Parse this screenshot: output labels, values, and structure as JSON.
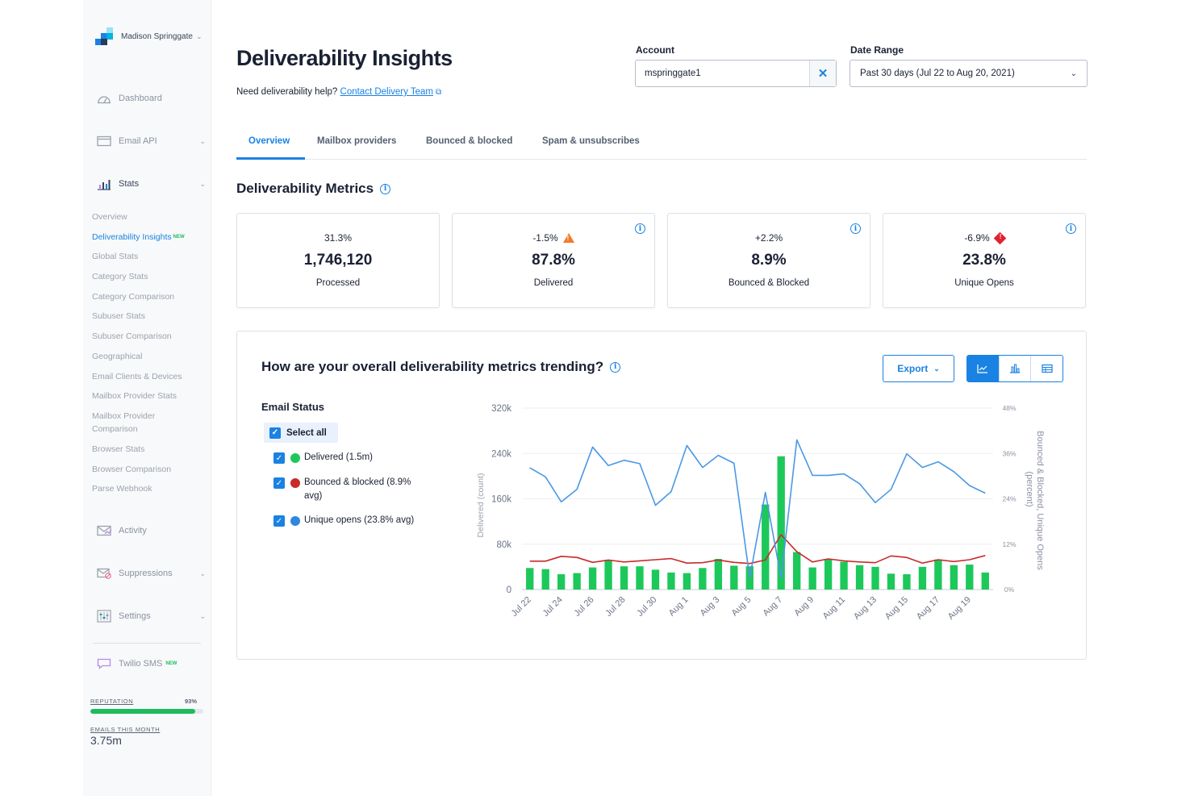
{
  "sidebar": {
    "brand": "Madison Springgate",
    "main_items": [
      {
        "label": "Dashboard",
        "icon": "gauge-icon"
      },
      {
        "label": "Email API",
        "icon": "mail-api-icon"
      },
      {
        "label": "Stats",
        "icon": "bar-stats-icon"
      }
    ],
    "stats_subitems": [
      "Overview",
      "Deliverability Insights",
      "Global Stats",
      "Category Stats",
      "Category Comparison",
      "Subuser Stats",
      "Subuser Comparison",
      "Geographical",
      "Email Clients & Devices",
      "Mailbox Provider Stats",
      "Mailbox Provider Comparison",
      "Browser Stats",
      "Browser Comparison",
      "Parse Webhook"
    ],
    "new_badge": "NEW",
    "lower_items": [
      {
        "label": "Activity",
        "icon": "activity-icon"
      },
      {
        "label": "Suppressions",
        "icon": "suppressions-icon"
      },
      {
        "label": "Settings",
        "icon": "settings-icon"
      }
    ],
    "twilio": {
      "label": "Twilio SMS",
      "badge": "NEW"
    },
    "reputation": {
      "label": "REPUTATION",
      "value_text": "93%",
      "value": 93
    },
    "emails_month": {
      "label": "EMAILS THIS MONTH",
      "value": "3.75m"
    }
  },
  "header": {
    "title": "Deliverability Insights",
    "help_text": "Need deliverability help?",
    "help_link": "Contact Delivery Team",
    "account_label": "Account",
    "account_value": "mspringgate1",
    "date_label": "Date Range",
    "date_value": "Past 30 days (Jul 22 to Aug 20, 2021)"
  },
  "tabs": [
    "Overview",
    "Mailbox providers",
    "Bounced & blocked",
    "Spam & unsubscribes"
  ],
  "metrics_title": "Deliverability Metrics",
  "metrics": [
    {
      "delta": "31.3%",
      "value": "1,746,120",
      "label": "Processed",
      "status": "none"
    },
    {
      "delta": "-1.5%",
      "value": "87.8%",
      "label": "Delivered",
      "status": "warning"
    },
    {
      "delta": "+2.2%",
      "value": "8.9%",
      "label": "Bounced & Blocked",
      "status": "none"
    },
    {
      "delta": "-6.9%",
      "value": "23.8%",
      "label": "Unique Opens",
      "status": "danger"
    }
  ],
  "trend": {
    "title": "How are your overall deliverability metrics trending?",
    "export_label": "Export",
    "email_status_title": "Email Status",
    "select_all": "Select all",
    "legend": [
      {
        "label": "Delivered (1.5m)",
        "color": "#1dc85a"
      },
      {
        "label": "Bounced & blocked (8.9% avg)",
        "color": "#c92a2a"
      },
      {
        "label": "Unique opens (23.8% avg)",
        "color": "#2f87e0"
      }
    ]
  },
  "colors": {
    "accent": "#1a82e2",
    "delivered": "#1dc85a",
    "bounced": "#c92a2a",
    "opens": "#4a98e6"
  },
  "chart_data": {
    "type": "bar+line",
    "x_tick_labels": [
      "Jul 22",
      "Jul 24",
      "Jul 26",
      "Jul 28",
      "Jul 30",
      "Aug 1",
      "Aug 3",
      "Aug 5",
      "Aug 7",
      "Aug 9",
      "Aug 11",
      "Aug 13",
      "Aug 15",
      "Aug 17",
      "Aug 19"
    ],
    "left_axis": {
      "label": "Delivered (count)",
      "ticks": [
        "0",
        "80k",
        "160k",
        "240k",
        "320k"
      ],
      "range": [
        0,
        320000
      ]
    },
    "right_axis": {
      "label": "Bounced & Blocked, Unique Opens (percent)",
      "ticks": [
        "0%",
        "12%",
        "24%",
        "36%",
        "48%"
      ],
      "range": [
        0,
        48
      ]
    },
    "series": [
      {
        "name": "Delivered",
        "type": "bar",
        "axis": "left",
        "values": [
          38000,
          36000,
          27000,
          29000,
          39000,
          52000,
          41000,
          41000,
          35000,
          30000,
          29000,
          38000,
          54000,
          42000,
          41000,
          150000,
          235000,
          66000,
          39000,
          54000,
          49000,
          43000,
          40000,
          28000,
          27000,
          40000,
          53000,
          43000,
          44000,
          30000
        ]
      },
      {
        "name": "Bounced & blocked",
        "type": "line",
        "axis": "right",
        "values": [
          7.5,
          7.5,
          8.8,
          8.5,
          7.2,
          7.8,
          7.3,
          7.6,
          7.9,
          8.2,
          7.0,
          7.1,
          7.8,
          7.2,
          6.9,
          7.8,
          14.5,
          10.0,
          7.3,
          8.1,
          7.6,
          7.3,
          7.1,
          8.9,
          8.5,
          7.0,
          7.9,
          7.4,
          7.9,
          9.0
        ]
      },
      {
        "name": "Unique opens",
        "type": "line",
        "axis": "right",
        "values": [
          32.2,
          29.8,
          23.2,
          26.5,
          37.7,
          32.8,
          34.2,
          33.3,
          22.3,
          25.9,
          38.1,
          32.3,
          35.5,
          33.4,
          3.1,
          25.7,
          3.0,
          39.6,
          30.2,
          30.2,
          30.6,
          28.0,
          23.0,
          26.5,
          35.9,
          32.3,
          33.8,
          31.2,
          27.5,
          25.5
        ]
      }
    ]
  }
}
